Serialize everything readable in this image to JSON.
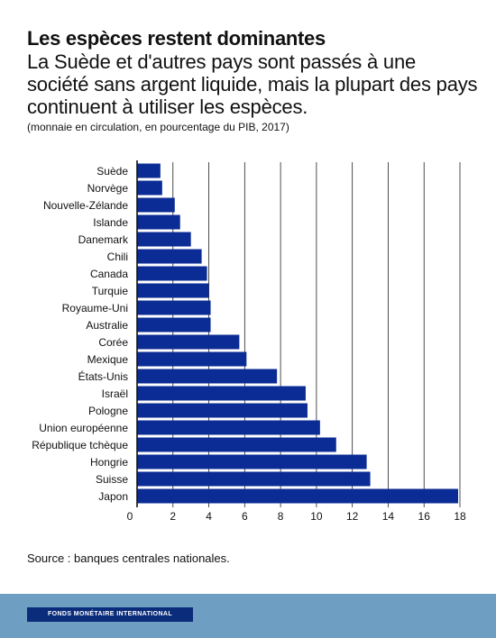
{
  "header": {
    "title": "Les espèces restent dominantes",
    "subtitle": "La Suède et d'autres pays sont passés à une société sans argent liquide, mais la plupart des pays continuent à utiliser les espèces.",
    "note": "(monnaie en circulation, en pourcentage du PIB, 2017)"
  },
  "source": "Source : banques centrales nationales.",
  "footer": {
    "org_name": "FONDS MONÉTAIRE INTERNATIONAL"
  },
  "colors": {
    "bar": "#0b2c94",
    "footer_band": "#6f9ec3",
    "footer_badge": "#0b2c7a"
  },
  "chart_data": {
    "type": "bar",
    "orientation": "horizontal",
    "categories": [
      "Suède",
      "Norvège",
      "Nouvelle-Zélande",
      "Islande",
      "Danemark",
      "Chili",
      "Canada",
      "Turquie",
      "Royaume-Uni",
      "Australie",
      "Corée",
      "Mexique",
      "États-Unis",
      "Israël",
      "Pologne",
      "Union européenne",
      "République tchèque",
      "Hongrie",
      "Suisse",
      "Japon"
    ],
    "values": [
      1.3,
      1.4,
      2.1,
      2.4,
      3.0,
      3.6,
      3.9,
      4.0,
      4.1,
      4.1,
      5.7,
      6.1,
      7.8,
      9.4,
      9.5,
      10.2,
      11.1,
      12.8,
      13.0,
      17.9
    ],
    "xlim": [
      0,
      18
    ],
    "xticks": [
      "0",
      "2",
      "4",
      "6",
      "8",
      "10",
      "12",
      "14",
      "16",
      "18"
    ],
    "grid": true,
    "legend": "none"
  }
}
